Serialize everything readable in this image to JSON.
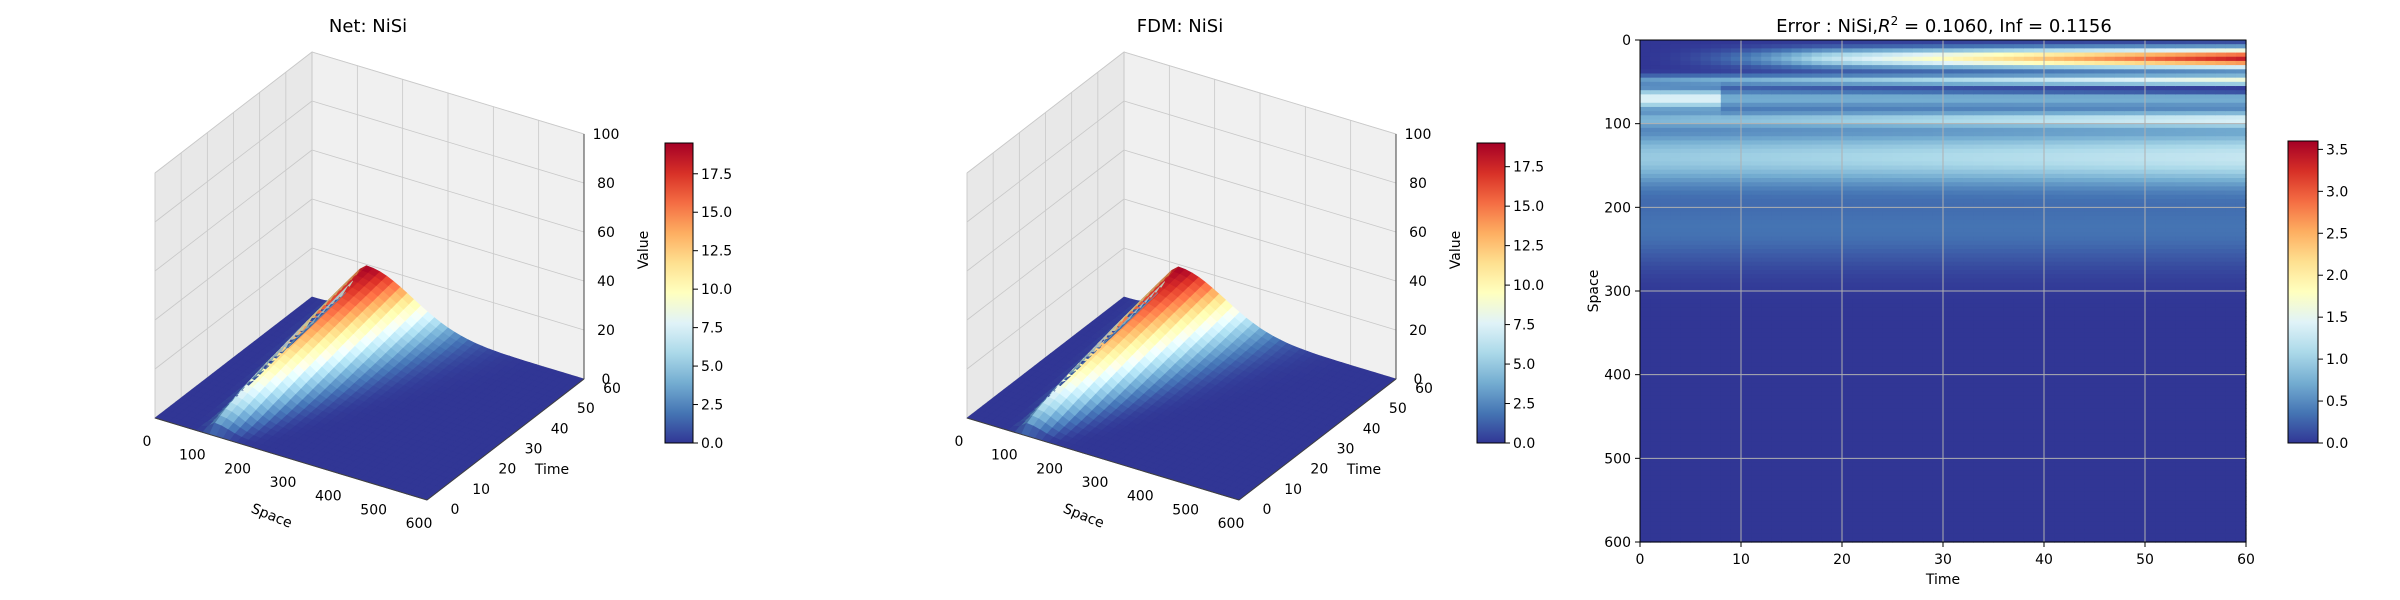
{
  "colormap": [
    "#313695",
    "#4575b4",
    "#74add1",
    "#abd9e9",
    "#e0f3f8",
    "#ffffbf",
    "#fee090",
    "#fdae61",
    "#f46d43",
    "#d73027",
    "#a50026"
  ],
  "chart_data": [
    {
      "type": "surface3d",
      "title": "Net: NiSi",
      "xlabel": "Space",
      "ylabel": "Time",
      "zlabel": "Value",
      "xlim": [
        0,
        600
      ],
      "ylim": [
        0,
        60
      ],
      "zlim": [
        0,
        100
      ],
      "xticks": [
        "0",
        "100",
        "200",
        "300",
        "400",
        "500",
        "600"
      ],
      "yticks": [
        "0",
        "10",
        "20",
        "30",
        "40",
        "50",
        "60"
      ],
      "zticks": [
        "0",
        "20",
        "40",
        "60",
        "80",
        "100"
      ],
      "peak_value": 19.5,
      "peak_space": 120,
      "colorbar": {
        "range": [
          0,
          19.5
        ],
        "ticks": [
          "0.0",
          "2.5",
          "5.0",
          "7.5",
          "10.0",
          "12.5",
          "15.0",
          "17.5"
        ]
      }
    },
    {
      "type": "surface3d",
      "title": "FDM: NiSi",
      "xlabel": "Space",
      "ylabel": "Time",
      "zlabel": "Value",
      "xlim": [
        0,
        600
      ],
      "ylim": [
        0,
        60
      ],
      "zlim": [
        0,
        100
      ],
      "xticks": [
        "0",
        "100",
        "200",
        "300",
        "400",
        "500",
        "600"
      ],
      "yticks": [
        "0",
        "10",
        "20",
        "30",
        "40",
        "50",
        "60"
      ],
      "zticks": [
        "0",
        "20",
        "40",
        "60",
        "80",
        "100"
      ],
      "peak_value": 19.0,
      "peak_space": 120,
      "colorbar": {
        "range": [
          0,
          19.0
        ],
        "ticks": [
          "0.0",
          "2.5",
          "5.0",
          "7.5",
          "10.0",
          "12.5",
          "15.0",
          "17.5"
        ]
      }
    },
    {
      "type": "heatmap",
      "title_prefix": "Error : NiSi,",
      "title_r2_symbol": "R",
      "title_r2_exp": "2",
      "title_suffix": " = 0.1060, Inf = 0.1156",
      "xlabel": "Time",
      "ylabel": "Space",
      "xlim": [
        0,
        60
      ],
      "ylim": [
        600,
        0
      ],
      "xticks": [
        "0",
        "10",
        "20",
        "30",
        "40",
        "50",
        "60"
      ],
      "yticks": [
        "0",
        "100",
        "200",
        "300",
        "400",
        "500",
        "600"
      ],
      "grid": true,
      "value_range": [
        0,
        3.6
      ],
      "colorbar": {
        "range": [
          0,
          3.6
        ],
        "ticks": [
          "0.0",
          "0.5",
          "1.0",
          "1.5",
          "2.0",
          "2.5",
          "3.0",
          "3.5"
        ]
      }
    }
  ]
}
